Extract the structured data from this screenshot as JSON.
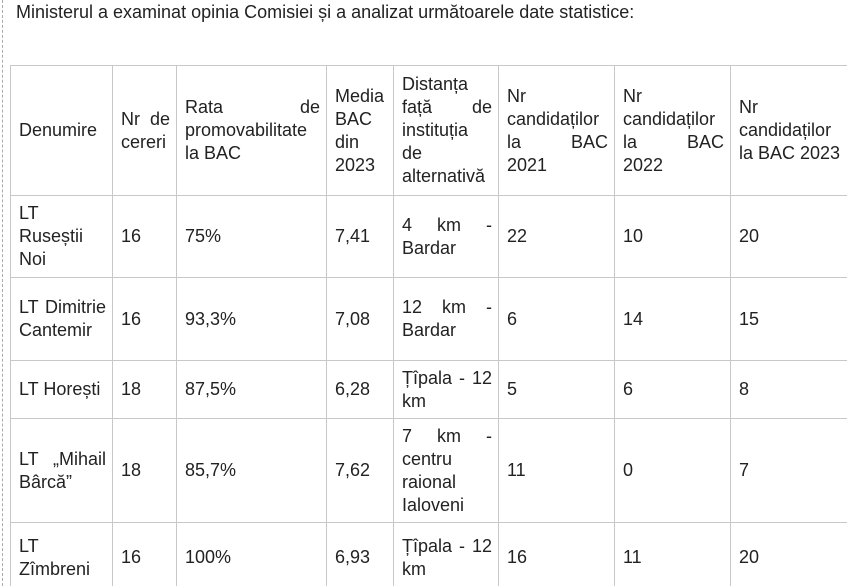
{
  "intro": "Ministerul a examinat opinia Comisiei și a analizat următoarele date statistice:",
  "table": {
    "header": [
      "Denumire",
      "Nr de cereri",
      "Rata de promovabilitate la BAC",
      "Media BAC din 2023",
      "Distanța față de instituția de alternativă",
      "Nr candidaților la BAC 2021",
      "Nr candidaților la BAC 2022",
      "Nr candidaților la BAC 2023"
    ],
    "rows": [
      [
        "LT Ruseștii Noi",
        "16",
        "75%",
        "7,41",
        "4 km - Bardar",
        "22",
        "10",
        "20"
      ],
      [
        "LT Dimitrie Cantemir",
        "16",
        "93,3%",
        "7,08",
        "12 km - Bardar",
        "6",
        "14",
        "15"
      ],
      [
        "LT Horești",
        "18",
        "87,5%",
        "6,28",
        "Țîpala - 12 km",
        "5",
        "6",
        "8"
      ],
      [
        "LT „Mihail Bârcă”",
        "18",
        "85,7%",
        "7,62",
        "7 km - centru raional Ialoveni",
        "11",
        "0",
        "7"
      ],
      [
        "LT Zîmbreni",
        "16",
        "100%",
        "6,93",
        "Țîpala - 12 km",
        "16",
        "11",
        "20"
      ]
    ]
  }
}
